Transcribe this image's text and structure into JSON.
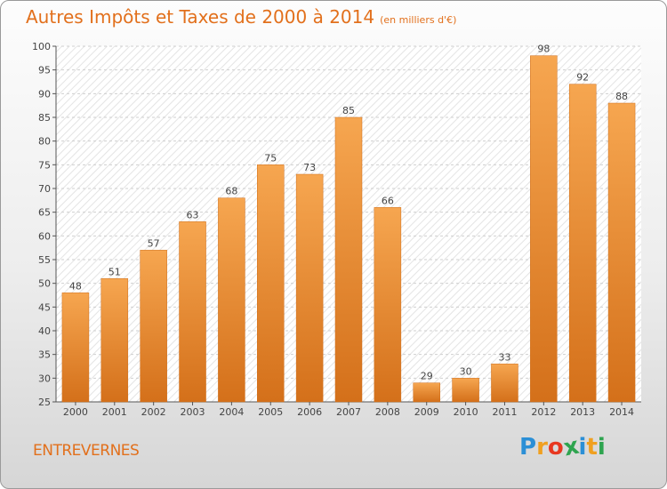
{
  "title": "Autres Impôts et Taxes de 2000 à 2014",
  "unit": "(en milliers d'€)",
  "town": "ENTREVERNES",
  "logo": {
    "letters": [
      "P",
      "r",
      "o",
      "x",
      "i",
      "t",
      "i"
    ],
    "colors": [
      "#2b8fd6",
      "#f0a020",
      "#e83820",
      "#2ea44f",
      "#2b8fd6",
      "#f0a020",
      "#2ea44f"
    ]
  },
  "colors": {
    "bar_top": "#f6a650",
    "bar_bottom": "#d4701a",
    "title": "#e2701c"
  },
  "chart_data": {
    "type": "bar",
    "categories": [
      "2000",
      "2001",
      "2002",
      "2003",
      "2004",
      "2005",
      "2006",
      "2007",
      "2008",
      "2009",
      "2010",
      "2011",
      "2012",
      "2013",
      "2014"
    ],
    "values": [
      48,
      51,
      57,
      63,
      68,
      75,
      73,
      85,
      66,
      29,
      30,
      33,
      98,
      92,
      88
    ],
    "ylim": [
      25,
      100
    ],
    "yticks": [
      25,
      30,
      35,
      40,
      45,
      50,
      55,
      60,
      65,
      70,
      75,
      80,
      85,
      90,
      95,
      100
    ],
    "grid": true,
    "data_labels": true
  }
}
